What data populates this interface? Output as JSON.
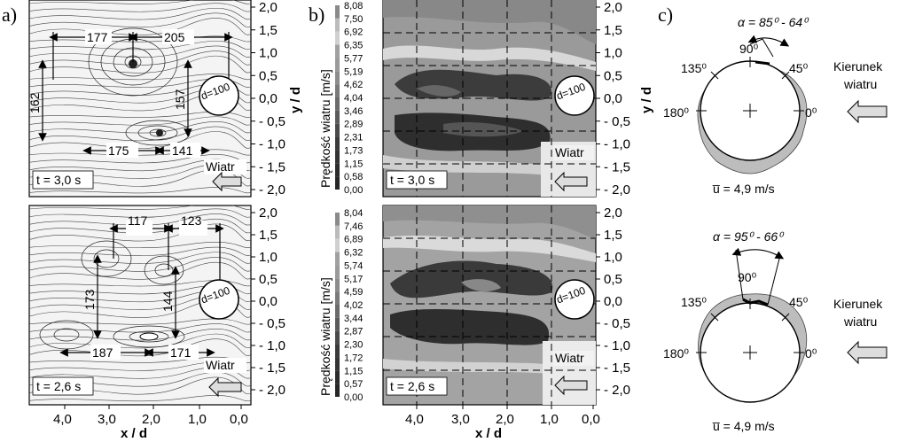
{
  "panels": {
    "a": "a)",
    "b": "b)",
    "c": "c)"
  },
  "axes": {
    "x_title": "x / d",
    "y_title": "y / d",
    "x_ticks": [
      "4,0",
      "3,0",
      "2,0",
      "1,0",
      "0,0"
    ],
    "y_ticks": [
      "2,0",
      "1,5",
      "1,0",
      "0,5",
      "0,0",
      "- 0,5",
      "- 1,0",
      "- 1,5",
      "- 2,0"
    ]
  },
  "streamlines_top": {
    "time": "t = 3,0 s",
    "dims": [
      "177",
      "205",
      "162",
      "157",
      "175",
      "141"
    ],
    "cylinder_label": "d=100",
    "wind_label": "Wiatr"
  },
  "streamlines_bottom": {
    "time": "t = 2,6 s",
    "dims": [
      "117",
      "123",
      "173",
      "144",
      "187",
      "171"
    ],
    "cylinder_label": "d=100",
    "wind_label": "Wiatr"
  },
  "contour_top": {
    "time": "t = 3,0 s",
    "colorbar_title": "Prędkość wiatru [m/s]",
    "colorbar_values": [
      "8,08",
      "7,50",
      "6,92",
      "6,35",
      "5,77",
      "5,19",
      "4,62",
      "4,04",
      "3,46",
      "2,89",
      "2,31",
      "1,73",
      "1,15",
      "0,58",
      "0,00"
    ],
    "cylinder_label": "d=100",
    "wind_label": "Wiatr"
  },
  "contour_bottom": {
    "time": "t = 2,6 s",
    "colorbar_title": "Prędkość wiatru [m/s]",
    "colorbar_values": [
      "8,04",
      "7,46",
      "6,89",
      "6,32",
      "5,74",
      "5,17",
      "4,59",
      "4,02",
      "3,44",
      "2,87",
      "2,30",
      "1,72",
      "1,15",
      "0,57",
      "0,00"
    ],
    "cylinder_label": "d=100",
    "wind_label": "Wiatr"
  },
  "polar_top": {
    "alpha": "α = 85⁰ - 64⁰",
    "angles": [
      "90⁰",
      "135⁰",
      "45⁰",
      "180⁰",
      "0⁰"
    ],
    "wind_dir": [
      "Kierunek",
      "wiatru"
    ],
    "mean_speed": "u̅ = 4,9 m/s"
  },
  "polar_bottom": {
    "alpha": "α = 95⁰ - 66⁰",
    "angles": [
      "90⁰",
      "135⁰",
      "45⁰",
      "180⁰",
      "0⁰"
    ],
    "wind_dir": [
      "Kierunek",
      "wiatru"
    ],
    "mean_speed": "u̅ = 4,9 m/s"
  }
}
